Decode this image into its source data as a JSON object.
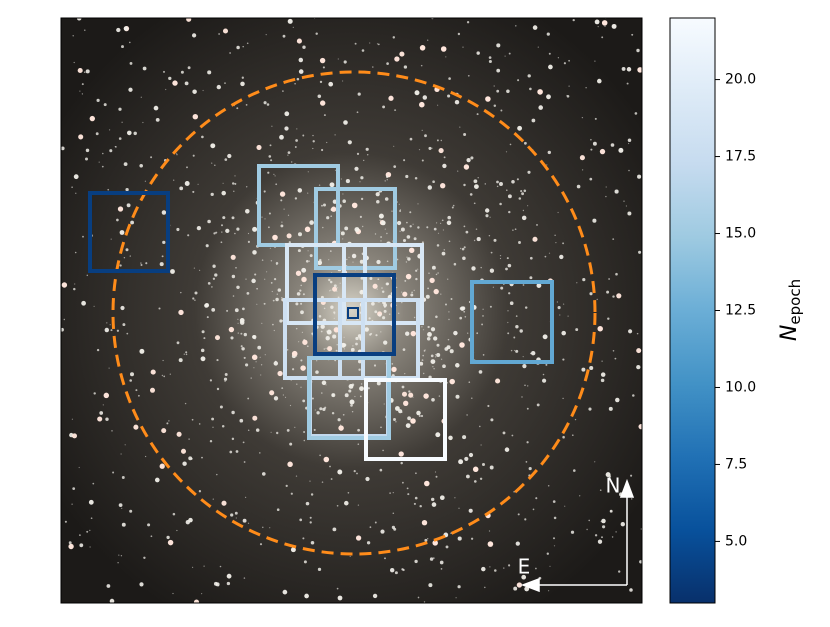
{
  "chart_data": {
    "type": "footprint",
    "colorbar": {
      "label": "N",
      "label_sub": "epoch",
      "clim": [
        3,
        22
      ],
      "ticks": [
        {
          "value": 5,
          "label": "5.0"
        },
        7.5,
        {
          "value": 10,
          "label": "10.0"
        },
        12.5,
        {
          "value": 15,
          "label": "15.0"
        },
        17.5,
        {
          "value": 20,
          "label": "20.0"
        }
      ],
      "colormap": [
        "#08306b",
        "#08519c",
        "#2171b5",
        "#4292c6",
        "#6baed6",
        "#9ecae1",
        "#c6dbef",
        "#deebf7",
        "#f7fbff"
      ]
    },
    "fields": {
      "n_epoch": [
        4,
        15,
        15,
        19,
        19,
        18,
        18,
        17,
        4,
        4,
        12,
        15,
        22
      ]
    },
    "compass": {
      "north": "N",
      "east": "E"
    }
  }
}
